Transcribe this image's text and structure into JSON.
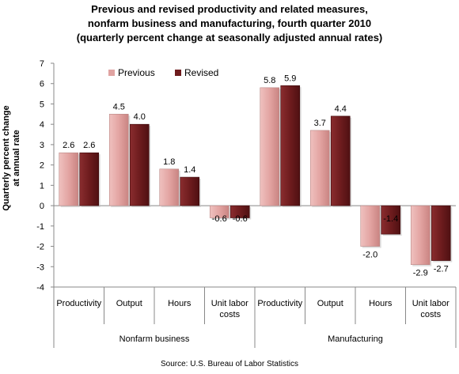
{
  "chart_data": {
    "type": "bar",
    "title_lines": [
      "Previous and revised productivity and related measures,",
      "nonfarm business and manufacturing, fourth quarter 2010",
      "(quarterly percent change at seasonally adjusted annual rates)"
    ],
    "ylabel_lines": [
      "Quarterly percent change",
      "at annual rate"
    ],
    "ylim": [
      -4,
      7
    ],
    "yticks": [
      "-4",
      "-3",
      "-2",
      "-1",
      "0",
      "1",
      "2",
      "3",
      "4",
      "5",
      "6",
      "7"
    ],
    "categories": [
      "Productivity",
      "Output",
      "Hours",
      "Unit labor costs",
      "Productivity",
      "Output",
      "Hours",
      "Unit labor costs"
    ],
    "groups": [
      {
        "label": "Nonfarm business",
        "span": 4
      },
      {
        "label": "Manufacturing",
        "span": 4
      }
    ],
    "series": [
      {
        "name": "Previous",
        "color": "#e0a3a1",
        "values": [
          2.6,
          4.5,
          1.8,
          -0.6,
          5.8,
          3.7,
          -2.0,
          -2.9
        ]
      },
      {
        "name": "Revised",
        "color": "#6e1c1e",
        "values": [
          2.6,
          4.0,
          1.4,
          -0.6,
          5.9,
          4.4,
          -1.4,
          -2.7
        ]
      }
    ],
    "data_labels": [
      [
        "2.6",
        "4.5",
        "1.8",
        "-0.6",
        "5.8",
        "3.7",
        "-2.0",
        "-2.9"
      ],
      [
        "2.6",
        "4.0",
        "1.4",
        "-0.6",
        "5.9",
        "4.4",
        "-1.4",
        "-2.7"
      ]
    ],
    "legend_position": "top-left",
    "grid": false,
    "source": "Source: U.S. Bureau of Labor Statistics"
  }
}
